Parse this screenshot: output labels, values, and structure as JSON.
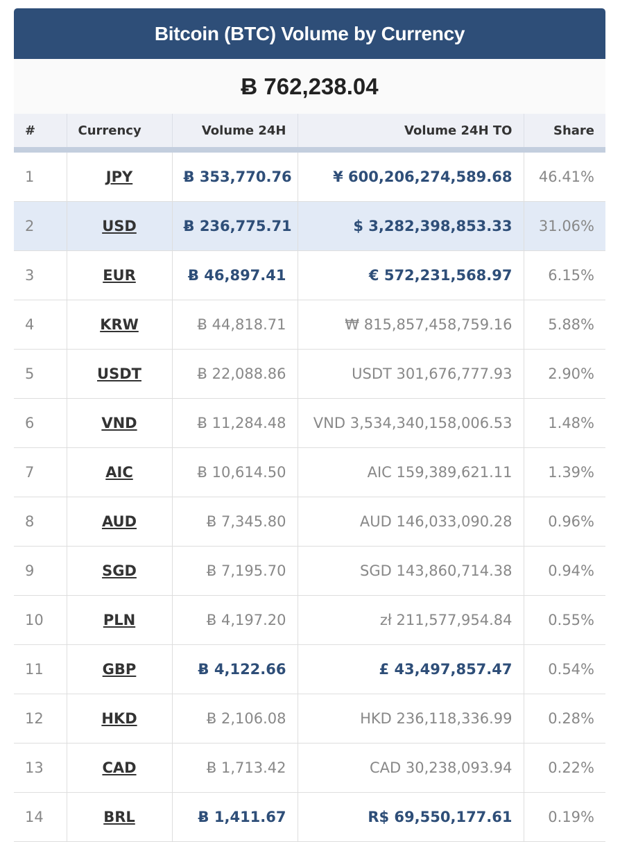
{
  "widget": {
    "title": "Bitcoin (BTC) Volume by Currency",
    "total": "Ƀ 762,238.04"
  },
  "table": {
    "headers": [
      "#",
      "Currency",
      "Volume 24H",
      "Volume 24H TO",
      "Share"
    ],
    "rows": [
      {
        "rank": "1",
        "currency": "JPY",
        "volume": "Ƀ 353,770.76",
        "volume_to": "¥ 600,206,274,589.68",
        "share": "46.41%",
        "highlight": true
      },
      {
        "rank": "2",
        "currency": "USD",
        "volume": "Ƀ 236,775.71",
        "volume_to": "$ 3,282,398,853.33",
        "share": "31.06%",
        "highlight": true
      },
      {
        "rank": "3",
        "currency": "EUR",
        "volume": "Ƀ 46,897.41",
        "volume_to": "€ 572,231,568.97",
        "share": "6.15%",
        "highlight": true
      },
      {
        "rank": "4",
        "currency": "KRW",
        "volume": "Ƀ 44,818.71",
        "volume_to": "₩ 815,857,458,759.16",
        "share": "5.88%",
        "highlight": false
      },
      {
        "rank": "5",
        "currency": "USDT",
        "volume": "Ƀ 22,088.86",
        "volume_to": "USDT 301,676,777.93",
        "share": "2.90%",
        "highlight": false
      },
      {
        "rank": "6",
        "currency": "VND",
        "volume": "Ƀ 11,284.48",
        "volume_to": "VND 3,534,340,158,006.53",
        "share": "1.48%",
        "highlight": false
      },
      {
        "rank": "7",
        "currency": "AIC",
        "volume": "Ƀ 10,614.50",
        "volume_to": "AIC 159,389,621.11",
        "share": "1.39%",
        "highlight": false
      },
      {
        "rank": "8",
        "currency": "AUD",
        "volume": "Ƀ 7,345.80",
        "volume_to": "AUD 146,033,090.28",
        "share": "0.96%",
        "highlight": false
      },
      {
        "rank": "9",
        "currency": "SGD",
        "volume": "Ƀ 7,195.70",
        "volume_to": "SGD 143,860,714.38",
        "share": "0.94%",
        "highlight": false
      },
      {
        "rank": "10",
        "currency": "PLN",
        "volume": "Ƀ 4,197.20",
        "volume_to": "zł 211,577,954.84",
        "share": "0.55%",
        "highlight": false
      },
      {
        "rank": "11",
        "currency": "GBP",
        "volume": "Ƀ 4,122.66",
        "volume_to": "£ 43,497,857.47",
        "share": "0.54%",
        "highlight": true
      },
      {
        "rank": "12",
        "currency": "HKD",
        "volume": "Ƀ 2,106.08",
        "volume_to": "HKD 236,118,336.99",
        "share": "0.28%",
        "highlight": false
      },
      {
        "rank": "13",
        "currency": "CAD",
        "volume": "Ƀ 1,713.42",
        "volume_to": "CAD 30,238,093.94",
        "share": "0.22%",
        "highlight": false
      },
      {
        "rank": "14",
        "currency": "BRL",
        "volume": "Ƀ 1,411.67",
        "volume_to": "R$ 69,550,177.61",
        "share": "0.19%",
        "highlight": true
      }
    ],
    "hover_row_index": 1
  },
  "colors": {
    "header_bg": "#2e4e78",
    "highlight_text": "#2e4e78",
    "muted_text": "#888888",
    "hover_row_bg": "#e2eaf6"
  }
}
